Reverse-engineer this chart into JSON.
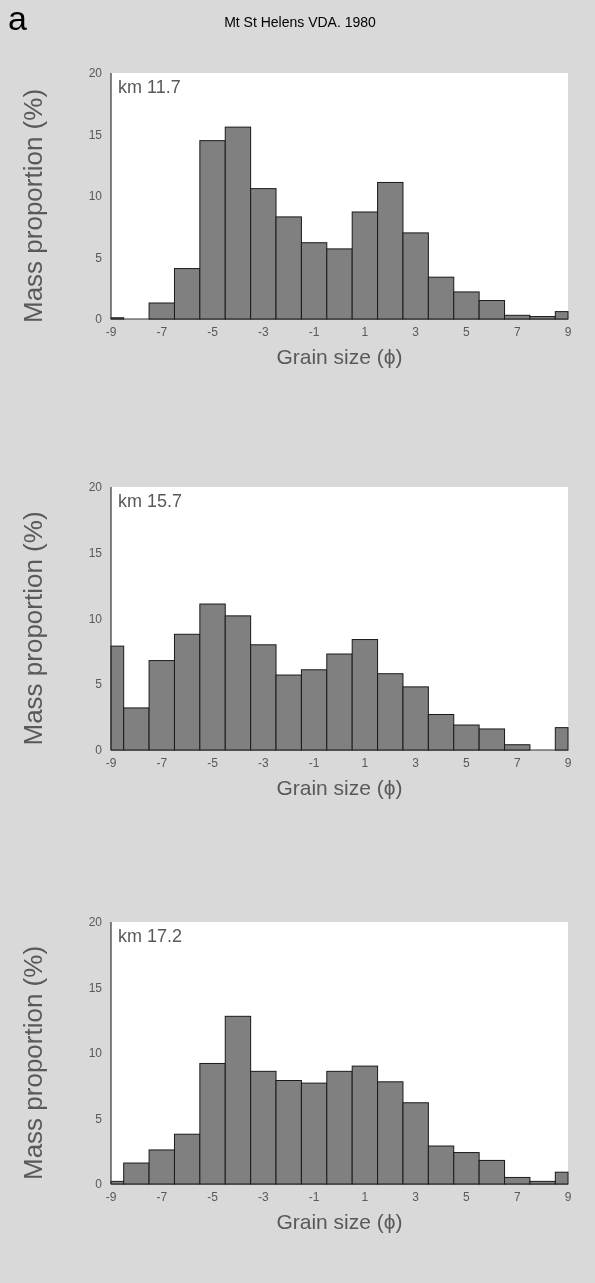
{
  "chart_data": [
    {
      "type": "histogram",
      "title": "Mt St Helens VDA. 1980",
      "annotations": [
        "a",
        "km 11.7"
      ],
      "xlabel": "Grain size (ϕ)",
      "ylabel": "Mass proportion (%)",
      "color": "#808080",
      "bins": [
        -9,
        -8.5,
        -7.5,
        -6.5,
        -5.5,
        -4.5,
        -3.5,
        -2.5,
        -1.5,
        -0.5,
        0.5,
        1.5,
        2.5,
        3.5,
        4.5,
        5.5,
        6.5,
        7.5,
        8.5,
        9
      ],
      "values": [
        0.1,
        0,
        1.3,
        4.1,
        14.5,
        15.6,
        10.6,
        8.3,
        6.2,
        5.7,
        8.7,
        11.1,
        7.0,
        3.4,
        2.2,
        1.5,
        0.3,
        0.2,
        0.6
      ],
      "xlim": [
        -9,
        9
      ],
      "xticks": [
        -9,
        -7,
        -5,
        -3,
        -1,
        1,
        3,
        5,
        7,
        9
      ],
      "ylim": [
        0,
        20
      ],
      "yticks": [
        0,
        5,
        10,
        15,
        20
      ]
    },
    {
      "type": "histogram",
      "annotations": [
        "km 15.7"
      ],
      "xlabel": "Grain size (ϕ)",
      "ylabel": "Mass proportion (%)",
      "color": "#808080",
      "bins": [
        -9,
        -8.5,
        -7.5,
        -6.5,
        -5.5,
        -4.5,
        -3.5,
        -2.5,
        -1.5,
        -0.5,
        0.5,
        1.5,
        2.5,
        3.5,
        4.5,
        5.5,
        6.5,
        7.5,
        8.5,
        9
      ],
      "values": [
        7.9,
        3.2,
        6.8,
        8.8,
        11.1,
        10.2,
        8.0,
        5.7,
        6.1,
        7.3,
        8.4,
        5.8,
        4.8,
        2.7,
        1.9,
        1.6,
        0.4,
        0,
        1.7
      ],
      "xlim": [
        -9,
        9
      ],
      "xticks": [
        -9,
        -7,
        -5,
        -3,
        -1,
        1,
        3,
        5,
        7,
        9
      ],
      "ylim": [
        0,
        20
      ],
      "yticks": [
        0,
        5,
        10,
        15,
        20
      ]
    },
    {
      "type": "histogram",
      "annotations": [
        "km 17.2"
      ],
      "xlabel": "Grain size (ϕ)",
      "ylabel": "Mass proportion (%)",
      "color": "#808080",
      "bins": [
        -9,
        -8.5,
        -7.5,
        -6.5,
        -5.5,
        -4.5,
        -3.5,
        -2.5,
        -1.5,
        -0.5,
        0.5,
        1.5,
        2.5,
        3.5,
        4.5,
        5.5,
        6.5,
        7.5,
        8.5,
        9
      ],
      "values": [
        0.2,
        1.6,
        2.6,
        3.8,
        9.2,
        12.8,
        8.6,
        7.9,
        7.7,
        8.6,
        9.0,
        7.8,
        6.2,
        2.9,
        2.4,
        1.8,
        0.5,
        0.2,
        0.9
      ],
      "xlim": [
        -9,
        9
      ],
      "xticks": [
        -9,
        -7,
        -5,
        -3,
        -1,
        1,
        3,
        5,
        7,
        9
      ],
      "ylim": [
        0,
        20
      ],
      "yticks": [
        0,
        5,
        10,
        15,
        20
      ]
    }
  ]
}
